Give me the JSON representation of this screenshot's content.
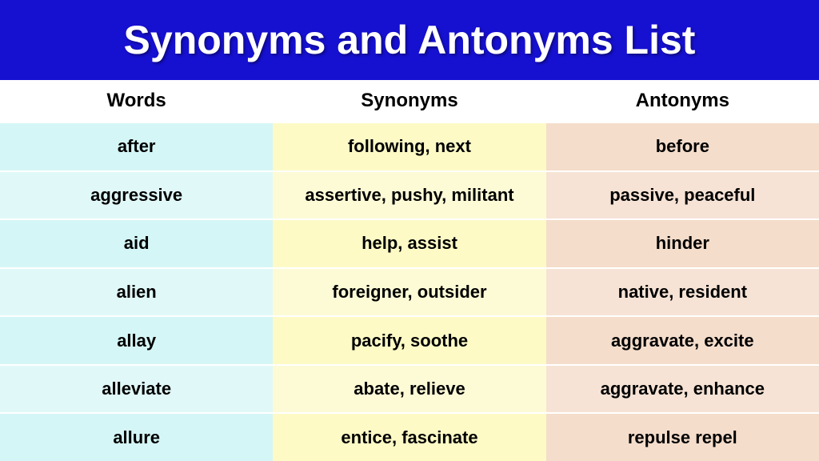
{
  "title": "Synonyms and Antonyms List",
  "title_bar_color": "#1610d1",
  "title_text_color": "#ffffff",
  "title_fontsize": 50,
  "header_fontsize": 24,
  "cell_fontsize": 22,
  "columns": {
    "words": {
      "label": "Words",
      "bg_even": "#d5f6f6",
      "bg_odd": "#e1f8f8"
    },
    "synonyms": {
      "label": "Synonyms",
      "bg_even": "#fdfac6",
      "bg_odd": "#fdfbd6"
    },
    "antonyms": {
      "label": "Antonyms",
      "bg_even": "#f4ddcb",
      "bg_odd": "#f6e3d5"
    }
  },
  "rows": [
    {
      "word": "after",
      "synonyms": "following, next",
      "antonyms": "before"
    },
    {
      "word": "aggressive",
      "synonyms": "assertive, pushy, militant",
      "antonyms": "passive, peaceful"
    },
    {
      "word": "aid",
      "synonyms": "help, assist",
      "antonyms": "hinder"
    },
    {
      "word": "alien",
      "synonyms": "foreigner, outsider",
      "antonyms": "native, resident"
    },
    {
      "word": "allay",
      "synonyms": "pacify, soothe",
      "antonyms": "aggravate, excite"
    },
    {
      "word": "alleviate",
      "synonyms": "abate, relieve",
      "antonyms": "aggravate, enhance"
    },
    {
      "word": "allure",
      "synonyms": "entice, fascinate",
      "antonyms": "repulse repel"
    }
  ],
  "row_separator_color": "#ffffff",
  "background_color": "#ffffff"
}
